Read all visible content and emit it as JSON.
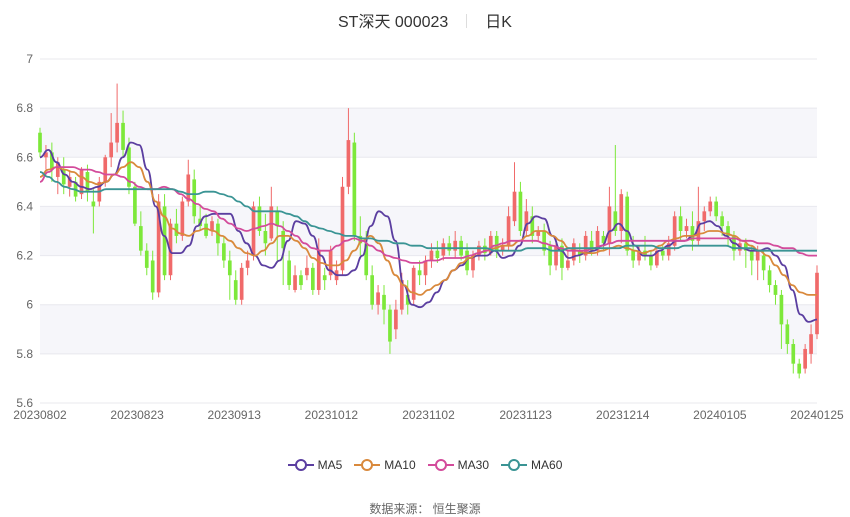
{
  "header": {
    "name": "ST深天 000023",
    "period": "日K"
  },
  "source": {
    "label": "数据来源：",
    "name": "恒生聚源"
  },
  "chart_data": {
    "type": "candlestick",
    "ylim": [
      5.6,
      7
    ],
    "yticks": [
      "5.6",
      "5.8",
      "6",
      "6.2",
      "6.4",
      "6.6",
      "6.8",
      "7"
    ],
    "xticks": [
      "20230802",
      "20230823",
      "20230913",
      "20231012",
      "20231102",
      "20231123",
      "20231214",
      "20240105",
      "20240125"
    ],
    "grid": true,
    "colors": {
      "up": "#f06a6a",
      "down": "#7de83a"
    },
    "candles": [
      [
        6.7,
        6.62,
        6.72,
        6.6
      ],
      [
        6.6,
        6.62,
        6.65,
        6.55
      ],
      [
        6.62,
        6.55,
        6.66,
        6.5
      ],
      [
        6.52,
        6.58,
        6.6,
        6.45
      ],
      [
        6.55,
        6.49,
        6.6,
        6.45
      ],
      [
        6.48,
        6.52,
        6.54,
        6.44
      ],
      [
        6.5,
        6.44,
        6.52,
        6.42
      ],
      [
        6.45,
        6.55,
        6.56,
        6.43
      ],
      [
        6.54,
        6.46,
        6.57,
        6.42
      ],
      [
        6.42,
        6.4,
        6.47,
        6.29
      ],
      [
        6.42,
        6.5,
        6.52,
        6.4
      ],
      [
        6.5,
        6.6,
        6.61,
        6.48
      ],
      [
        6.6,
        6.66,
        6.78,
        6.56
      ],
      [
        6.66,
        6.74,
        6.9,
        6.62
      ],
      [
        6.74,
        6.63,
        6.79,
        6.6
      ],
      [
        6.64,
        6.48,
        6.68,
        6.45
      ],
      [
        6.48,
        6.33,
        6.5,
        6.32
      ],
      [
        6.32,
        6.22,
        6.38,
        6.2
      ],
      [
        6.22,
        6.15,
        6.25,
        6.12
      ],
      [
        6.18,
        6.05,
        6.22,
        6.02
      ],
      [
        6.05,
        6.42,
        6.45,
        6.03
      ],
      [
        6.4,
        6.12,
        6.45,
        6.1
      ],
      [
        6.12,
        6.33,
        6.35,
        6.1
      ],
      [
        6.33,
        6.28,
        6.39,
        6.25
      ],
      [
        6.28,
        6.42,
        6.44,
        6.26
      ],
      [
        6.42,
        6.53,
        6.59,
        6.4
      ],
      [
        6.51,
        6.36,
        6.55,
        6.33
      ],
      [
        6.35,
        6.32,
        6.4,
        6.3
      ],
      [
        6.33,
        6.28,
        6.37,
        6.27
      ],
      [
        6.3,
        6.34,
        6.36,
        6.28
      ],
      [
        6.33,
        6.25,
        6.35,
        6.2
      ],
      [
        6.25,
        6.18,
        6.28,
        6.15
      ],
      [
        6.18,
        6.12,
        6.22,
        6.02
      ],
      [
        6.1,
        6.02,
        6.14,
        6.0
      ],
      [
        6.02,
        6.15,
        6.17,
        6.0
      ],
      [
        6.15,
        6.18,
        6.22,
        6.12
      ],
      [
        6.2,
        6.4,
        6.42,
        6.18
      ],
      [
        6.4,
        6.3,
        6.44,
        6.28
      ],
      [
        6.3,
        6.25,
        6.37,
        6.2
      ],
      [
        6.27,
        6.4,
        6.48,
        6.26
      ],
      [
        6.38,
        6.32,
        6.4,
        6.18
      ],
      [
        6.3,
        6.23,
        6.34,
        6.08
      ],
      [
        6.18,
        6.08,
        6.22,
        6.06
      ],
      [
        6.06,
        6.12,
        6.16,
        6.05
      ],
      [
        6.12,
        6.08,
        6.14,
        6.06
      ],
      [
        6.12,
        6.15,
        6.2,
        6.1
      ],
      [
        6.15,
        6.06,
        6.17,
        6.04
      ],
      [
        6.06,
        6.22,
        6.27,
        6.04
      ],
      [
        6.12,
        6.1,
        6.15,
        6.06
      ],
      [
        6.12,
        6.22,
        6.24,
        6.1
      ],
      [
        6.1,
        6.14,
        6.18,
        6.08
      ],
      [
        6.14,
        6.48,
        6.52,
        6.12
      ],
      [
        6.48,
        6.67,
        6.8,
        6.45
      ],
      [
        6.66,
        6.28,
        6.7,
        6.26
      ],
      [
        6.28,
        6.25,
        6.36,
        6.2
      ],
      [
        6.25,
        6.12,
        6.3,
        6.1
      ],
      [
        6.12,
        6.0,
        6.16,
        5.98
      ],
      [
        6.0,
        6.05,
        6.08,
        5.96
      ],
      [
        6.04,
        5.98,
        6.08,
        5.92
      ],
      [
        5.98,
        5.85,
        6.0,
        5.8
      ],
      [
        5.9,
        5.98,
        6.02,
        5.86
      ],
      [
        5.98,
        6.1,
        6.13,
        5.96
      ],
      [
        6.04,
        6.0,
        6.1,
        5.96
      ],
      [
        6.02,
        6.15,
        6.16,
        6.0
      ],
      [
        6.14,
        6.12,
        6.18,
        6.08
      ],
      [
        6.12,
        6.18,
        6.2,
        6.08
      ],
      [
        6.18,
        6.22,
        6.25,
        6.15
      ],
      [
        6.22,
        6.19,
        6.26,
        6.17
      ],
      [
        6.2,
        6.25,
        6.27,
        6.18
      ],
      [
        6.25,
        6.22,
        6.28,
        6.2
      ],
      [
        6.22,
        6.26,
        6.3,
        6.19
      ],
      [
        6.26,
        6.2,
        6.28,
        6.18
      ],
      [
        6.22,
        6.14,
        6.25,
        6.12
      ],
      [
        6.14,
        6.2,
        6.22,
        6.11
      ],
      [
        6.2,
        6.24,
        6.26,
        6.18
      ],
      [
        6.24,
        6.21,
        6.27,
        6.18
      ],
      [
        6.21,
        6.28,
        6.3,
        6.2
      ],
      [
        6.28,
        6.22,
        6.3,
        6.19
      ],
      [
        6.22,
        6.24,
        6.27,
        6.2
      ],
      [
        6.24,
        6.36,
        6.4,
        6.22
      ],
      [
        6.34,
        6.46,
        6.58,
        6.32
      ],
      [
        6.46,
        6.3,
        6.5,
        6.28
      ],
      [
        6.3,
        6.38,
        6.43,
        6.28
      ],
      [
        6.36,
        6.28,
        6.4,
        6.25
      ],
      [
        6.28,
        6.3,
        6.32,
        6.26
      ],
      [
        6.3,
        6.22,
        6.33,
        6.2
      ],
      [
        6.24,
        6.16,
        6.26,
        6.12
      ],
      [
        6.16,
        6.24,
        6.27,
        6.14
      ],
      [
        6.24,
        6.15,
        6.27,
        6.1
      ],
      [
        6.15,
        6.18,
        6.22,
        6.14
      ],
      [
        6.18,
        6.25,
        6.27,
        6.16
      ],
      [
        6.22,
        6.2,
        6.25,
        6.17
      ],
      [
        6.2,
        6.28,
        6.3,
        6.18
      ],
      [
        6.26,
        6.22,
        6.3,
        6.2
      ],
      [
        6.22,
        6.3,
        6.32,
        6.2
      ],
      [
        6.28,
        6.25,
        6.3,
        6.22
      ],
      [
        6.25,
        6.4,
        6.48,
        6.2
      ],
      [
        6.38,
        6.3,
        6.65,
        6.28
      ],
      [
        6.3,
        6.45,
        6.47,
        6.25
      ],
      [
        6.44,
        6.22,
        6.46,
        6.2
      ],
      [
        6.22,
        6.18,
        6.28,
        6.15
      ],
      [
        6.18,
        6.22,
        6.24,
        6.16
      ],
      [
        6.22,
        6.2,
        6.28,
        6.18
      ],
      [
        6.2,
        6.16,
        6.22,
        6.14
      ],
      [
        6.16,
        6.22,
        6.24,
        6.15
      ],
      [
        6.22,
        6.2,
        6.24,
        6.18
      ],
      [
        6.2,
        6.25,
        6.28,
        6.18
      ],
      [
        6.24,
        6.36,
        6.38,
        6.22
      ],
      [
        6.36,
        6.3,
        6.4,
        6.26
      ],
      [
        6.3,
        6.32,
        6.35,
        6.27
      ],
      [
        6.32,
        6.26,
        6.38,
        6.22
      ],
      [
        6.26,
        6.34,
        6.48,
        6.24
      ],
      [
        6.34,
        6.38,
        6.4,
        6.3
      ],
      [
        6.38,
        6.42,
        6.44,
        6.36
      ],
      [
        6.42,
        6.36,
        6.44,
        6.34
      ],
      [
        6.36,
        6.32,
        6.38,
        6.28
      ],
      [
        6.32,
        6.28,
        6.34,
        6.24
      ],
      [
        6.28,
        6.22,
        6.3,
        6.18
      ],
      [
        6.22,
        6.25,
        6.27,
        6.2
      ],
      [
        6.25,
        6.22,
        6.27,
        6.15
      ],
      [
        6.22,
        6.18,
        6.24,
        6.12
      ],
      [
        6.18,
        6.22,
        6.24,
        6.1
      ],
      [
        6.2,
        6.14,
        6.22,
        6.1
      ],
      [
        6.14,
        6.08,
        6.16,
        6.05
      ],
      [
        6.08,
        6.04,
        6.1,
        6.0
      ],
      [
        6.04,
        5.92,
        6.06,
        5.82
      ],
      [
        5.92,
        5.84,
        5.94,
        5.8
      ],
      [
        5.84,
        5.76,
        5.86,
        5.72
      ],
      [
        5.76,
        5.72,
        5.78,
        5.7
      ],
      [
        5.74,
        5.82,
        5.84,
        5.72
      ],
      [
        5.8,
        5.88,
        5.92,
        5.76
      ],
      [
        5.88,
        6.13,
        6.16,
        5.86
      ]
    ],
    "series": [
      {
        "name": "MA5",
        "color": "#5b3ea0",
        "values": [
          6.6,
          6.63,
          6.58,
          6.53,
          6.5,
          6.48,
          6.47,
          6.48,
          6.5,
          6.53,
          6.6,
          6.66,
          6.65,
          6.55,
          6.4,
          6.28,
          6.21,
          6.21,
          6.24,
          6.32,
          6.36,
          6.37,
          6.37,
          6.37,
          6.3,
          6.25,
          6.2,
          6.16,
          6.15,
          6.18,
          6.26,
          6.34,
          6.33,
          6.28,
          6.2,
          6.14,
          6.12,
          6.12,
          6.14,
          6.2,
          6.32,
          6.38,
          6.36,
          6.26,
          6.08,
          6.0,
          5.99,
          6.01,
          6.05,
          6.1,
          6.14,
          6.16,
          6.19,
          6.2,
          6.2,
          6.22,
          6.19,
          6.2,
          6.24,
          6.33,
          6.36,
          6.35,
          6.28,
          6.22,
          6.19,
          6.2,
          6.21,
          6.22,
          6.24,
          6.3,
          6.33,
          6.3,
          6.24,
          6.2,
          6.2,
          6.22,
          6.24,
          6.26,
          6.26,
          6.28,
          6.33,
          6.34,
          6.32,
          6.28,
          6.25,
          6.23,
          6.22,
          6.22,
          6.23,
          6.2,
          6.16,
          6.06,
          5.96,
          5.93,
          5.94
        ]
      },
      {
        "name": "MA10",
        "color": "#d9893c",
        "values": [
          6.52,
          6.55,
          6.56,
          6.55,
          6.54,
          6.52,
          6.5,
          6.49,
          6.5,
          6.53,
          6.56,
          6.58,
          6.56,
          6.5,
          6.42,
          6.36,
          6.31,
          6.29,
          6.28,
          6.3,
          6.31,
          6.3,
          6.28,
          6.26,
          6.23,
          6.21,
          6.2,
          6.22,
          6.25,
          6.28,
          6.28,
          6.26,
          6.23,
          6.19,
          6.17,
          6.16,
          6.16,
          6.18,
          6.22,
          6.26,
          6.28,
          6.25,
          6.18,
          6.12,
          6.08,
          6.05,
          6.04,
          6.06,
          6.08,
          6.1,
          6.14,
          6.17,
          6.19,
          6.21,
          6.22,
          6.23,
          6.24,
          6.24,
          6.26,
          6.28,
          6.3,
          6.3,
          6.28,
          6.26,
          6.23,
          6.22,
          6.21,
          6.21,
          6.22,
          6.23,
          6.24,
          6.23,
          6.22,
          6.21,
          6.22,
          6.24,
          6.26,
          6.27,
          6.28,
          6.28,
          6.29,
          6.3,
          6.3,
          6.29,
          6.28,
          6.26,
          6.24,
          6.22,
          6.2,
          6.16,
          6.12,
          6.08,
          6.05,
          6.04,
          6.04
        ]
      },
      {
        "name": "MA30",
        "color": "#d34b9b",
        "values": [
          6.5,
          6.54,
          6.56,
          6.56,
          6.56,
          6.55,
          6.55,
          6.54,
          6.53,
          6.53,
          6.52,
          6.5,
          6.48,
          6.47,
          6.47,
          6.48,
          6.47,
          6.45,
          6.43,
          6.41,
          6.39,
          6.38,
          6.35,
          6.33,
          6.31,
          6.3,
          6.31,
          6.32,
          6.33,
          6.32,
          6.3,
          6.28,
          6.25,
          6.23,
          6.22,
          6.22,
          6.24,
          6.26,
          6.27,
          6.26,
          6.24,
          6.22,
          6.2,
          6.19,
          6.18,
          6.17,
          6.17,
          6.18,
          6.18,
          6.19,
          6.19,
          6.19,
          6.2,
          6.21,
          6.22,
          6.24,
          6.25,
          6.26,
          6.26,
          6.26,
          6.26,
          6.25,
          6.24,
          6.23,
          6.22,
          6.22,
          6.22,
          6.23,
          6.24,
          6.25,
          6.26,
          6.26,
          6.26,
          6.26,
          6.26,
          6.26,
          6.26,
          6.26,
          6.26,
          6.27,
          6.27,
          6.27,
          6.27,
          6.27,
          6.27,
          6.26,
          6.26,
          6.25,
          6.25,
          6.24,
          6.23,
          6.23,
          6.21,
          6.2,
          6.2
        ]
      },
      {
        "name": "MA60",
        "color": "#3a9494",
        "values": [
          6.54,
          6.52,
          6.5,
          6.48,
          6.47,
          6.46,
          6.46,
          6.46,
          6.47,
          6.47,
          6.47,
          6.47,
          6.47,
          6.47,
          6.47,
          6.47,
          6.47,
          6.46,
          6.45,
          6.45,
          6.46,
          6.46,
          6.45,
          6.44,
          6.42,
          6.4,
          6.38,
          6.38,
          6.38,
          6.38,
          6.37,
          6.36,
          6.34,
          6.32,
          6.31,
          6.3,
          6.29,
          6.28,
          6.28,
          6.27,
          6.27,
          6.26,
          6.26,
          6.25,
          6.25,
          6.24,
          6.24,
          6.23,
          6.23,
          6.23,
          6.23,
          6.23,
          6.23,
          6.23,
          6.23,
          6.22,
          6.22,
          6.22,
          6.22,
          6.23,
          6.23,
          6.23,
          6.22,
          6.22,
          6.23,
          6.23,
          6.23,
          6.23,
          6.23,
          6.23,
          6.23,
          6.24,
          6.24,
          6.24,
          6.24,
          6.23,
          6.23,
          6.23,
          6.24,
          6.24,
          6.24,
          6.24,
          6.24,
          6.24,
          6.23,
          6.23,
          6.23,
          6.22,
          6.22,
          6.22,
          6.22,
          6.22,
          6.22,
          6.22,
          6.22
        ]
      }
    ]
  }
}
